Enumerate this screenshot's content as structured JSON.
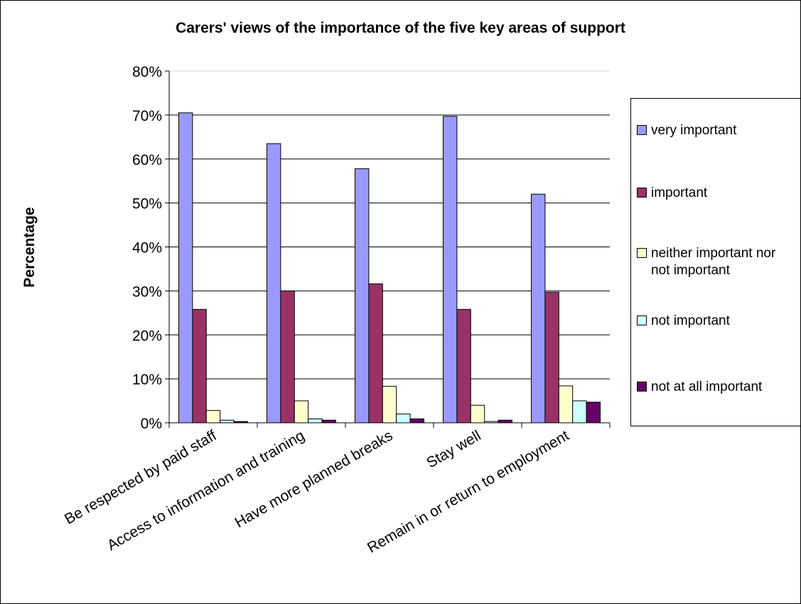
{
  "chart_data": {
    "type": "bar",
    "title": "Carers' views of the importance of the five key areas of support",
    "ylabel": "Percentage",
    "xlabel": "",
    "ylim": [
      0,
      80
    ],
    "y_ticks": [
      "0%",
      "10%",
      "20%",
      "30%",
      "40%",
      "50%",
      "60%",
      "70%",
      "80%"
    ],
    "categories": [
      "Be respected by paid staff",
      "Access to information and training",
      "Have more planned breaks",
      "Stay well",
      "Remain in or return to employment"
    ],
    "series": [
      {
        "name": "very important",
        "color": "#9999ff",
        "values": [
          70.5,
          63.5,
          57.8,
          69.7,
          52
        ]
      },
      {
        "name": "important",
        "color": "#993366",
        "values": [
          25.8,
          30,
          31.6,
          25.8,
          29.7
        ]
      },
      {
        "name": "neither important nor not important",
        "color": "#ffffcc",
        "values": [
          2.8,
          5,
          8.3,
          4,
          8.4
        ]
      },
      {
        "name": "not important",
        "color": "#ccffff",
        "values": [
          0.6,
          0.9,
          2,
          0.3,
          5
        ]
      },
      {
        "name": "not at all important",
        "color": "#660066",
        "values": [
          0.3,
          0.6,
          0.9,
          0.6,
          4.7
        ]
      }
    ],
    "grid": true,
    "legend_position": "right"
  }
}
